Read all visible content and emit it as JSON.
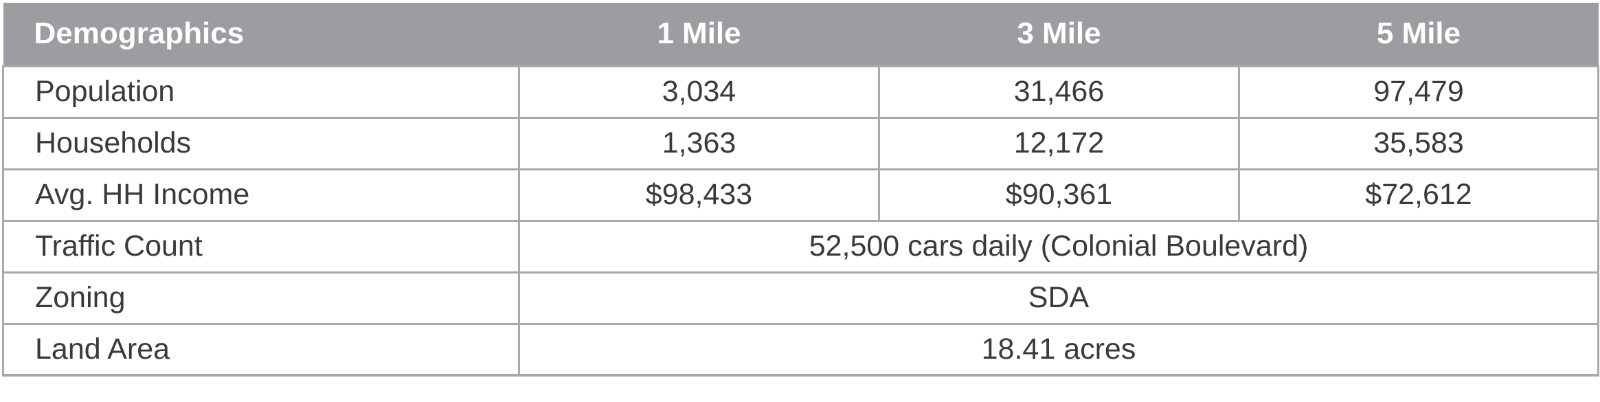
{
  "table": {
    "headers": [
      "Demographics",
      "1 Mile",
      "3 Mile",
      "5 Mile"
    ],
    "rows": [
      {
        "label": "Population",
        "values": [
          "3,034",
          "31,466",
          "97,479"
        ]
      },
      {
        "label": "Households",
        "values": [
          "1,363",
          "12,172",
          "35,583"
        ]
      },
      {
        "label": "Avg. HH Income",
        "values": [
          "$98,433",
          "$90,361",
          "$72,612"
        ]
      }
    ],
    "merged_rows": [
      {
        "label": "Traffic Count",
        "value": "52,500 cars daily (Colonial Boulevard)"
      },
      {
        "label": "Zoning",
        "value": "SDA"
      },
      {
        "label": "Land Area",
        "value": "18.41 acres"
      }
    ]
  },
  "colors": {
    "header_background": "#9d9da1",
    "header_text": "#ffffff",
    "grid_lines": "#a9a9a9",
    "body_text": "#3a3a3a"
  }
}
